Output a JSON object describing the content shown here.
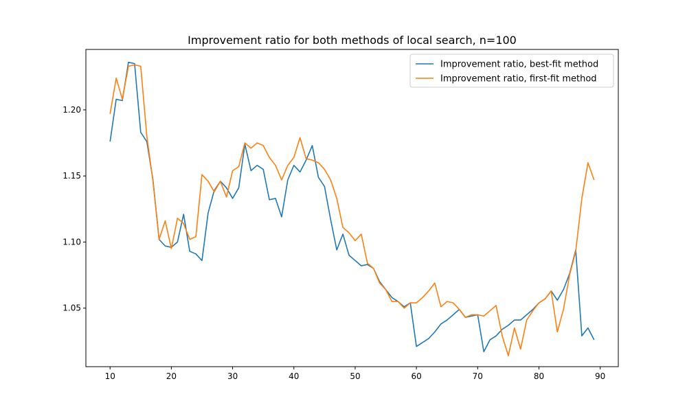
{
  "chart_data": {
    "type": "line",
    "title": "Improvement ratio for both methods of local search, n=100",
    "xlabel": "",
    "ylabel": "",
    "xlim": [
      6.05,
      92.95
    ],
    "ylim": [
      1.0057,
      1.2457
    ],
    "xticks": [
      10,
      20,
      30,
      40,
      50,
      60,
      70,
      80,
      90
    ],
    "yticks": [
      1.05,
      1.1,
      1.15,
      1.2
    ],
    "ytick_labels": [
      "1.05",
      "1.10",
      "1.15",
      "1.20"
    ],
    "grid": false,
    "legend_position": "top-right",
    "x": [
      10,
      11,
      12,
      13,
      14,
      15,
      16,
      17,
      18,
      19,
      20,
      21,
      22,
      23,
      24,
      25,
      26,
      27,
      28,
      29,
      30,
      31,
      32,
      33,
      34,
      35,
      36,
      37,
      38,
      39,
      40,
      41,
      42,
      43,
      44,
      45,
      46,
      47,
      48,
      49,
      50,
      51,
      52,
      53,
      54,
      55,
      56,
      57,
      58,
      59,
      60,
      61,
      62,
      63,
      64,
      65,
      66,
      67,
      68,
      69,
      70,
      71,
      72,
      73,
      74,
      75,
      76,
      77,
      78,
      79,
      80,
      81,
      82,
      83,
      84,
      85,
      86,
      87,
      88,
      89
    ],
    "series": [
      {
        "name": "Improvement ratio, best-fit method",
        "color": "#1f77b4",
        "values": [
          1.176,
          1.208,
          1.207,
          1.236,
          1.235,
          1.183,
          1.176,
          1.147,
          1.102,
          1.097,
          1.096,
          1.1,
          1.121,
          1.093,
          1.091,
          1.086,
          1.122,
          1.139,
          1.146,
          1.141,
          1.133,
          1.141,
          1.174,
          1.154,
          1.158,
          1.155,
          1.132,
          1.133,
          1.119,
          1.147,
          1.158,
          1.153,
          1.162,
          1.173,
          1.149,
          1.142,
          1.117,
          1.094,
          1.106,
          1.09,
          1.086,
          1.082,
          1.083,
          1.08,
          1.07,
          1.064,
          1.058,
          1.055,
          1.051,
          1.054,
          1.021,
          1.024,
          1.027,
          1.032,
          1.038,
          1.041,
          1.045,
          1.049,
          1.043,
          1.044,
          1.045,
          1.017,
          1.026,
          1.029,
          1.034,
          1.037,
          1.041,
          1.041,
          1.045,
          1.049,
          1.054,
          1.057,
          1.063,
          1.056,
          1.064,
          1.076,
          1.094,
          1.029,
          1.035,
          1.026
        ]
      },
      {
        "name": "Improvement ratio, first-fit method",
        "color": "#ff7f0e",
        "values": [
          1.197,
          1.224,
          1.208,
          1.233,
          1.234,
          1.233,
          1.18,
          1.146,
          1.102,
          1.116,
          1.095,
          1.118,
          1.114,
          1.102,
          1.104,
          1.151,
          1.146,
          1.138,
          1.146,
          1.134,
          1.154,
          1.157,
          1.175,
          1.171,
          1.175,
          1.173,
          1.164,
          1.158,
          1.147,
          1.158,
          1.164,
          1.179,
          1.163,
          1.162,
          1.16,
          1.155,
          1.147,
          1.133,
          1.111,
          1.107,
          1.101,
          1.106,
          1.084,
          1.08,
          1.069,
          1.064,
          1.055,
          1.055,
          1.05,
          1.054,
          1.054,
          1.058,
          1.063,
          1.069,
          1.051,
          1.055,
          1.054,
          1.049,
          1.043,
          1.045,
          1.045,
          1.044,
          1.048,
          1.052,
          1.029,
          1.014,
          1.035,
          1.019,
          1.041,
          1.048,
          1.054,
          1.057,
          1.063,
          1.032,
          1.049,
          1.075,
          1.093,
          1.133,
          1.16,
          1.147
        ]
      }
    ]
  }
}
